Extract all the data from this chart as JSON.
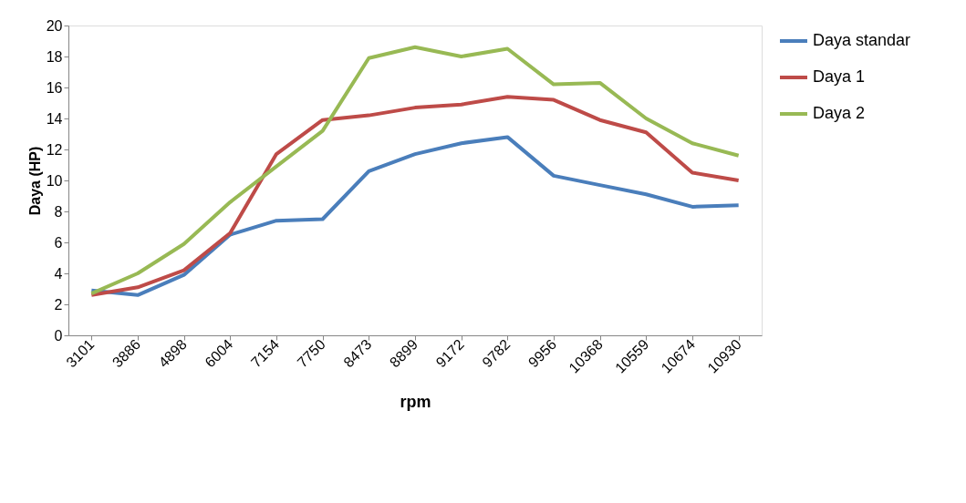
{
  "chart_data": {
    "type": "line",
    "xlabel": "rpm",
    "ylabel": "Daya (HP)",
    "categories": [
      "3101",
      "3886",
      "4898",
      "6004",
      "7154",
      "7750",
      "8473",
      "8899",
      "9172",
      "9782",
      "9956",
      "10368",
      "10559",
      "10674",
      "10930"
    ],
    "ylim": [
      0,
      20
    ],
    "yticks": [
      0,
      2,
      4,
      6,
      8,
      10,
      12,
      14,
      16,
      18,
      20
    ],
    "grid": false,
    "legend": "right",
    "marker": "none",
    "line_style": "solid",
    "series": [
      {
        "name": "Daya standar",
        "color": "#4a7ebb",
        "values": [
          2.9,
          2.6,
          3.9,
          6.5,
          7.4,
          7.5,
          10.6,
          11.7,
          12.4,
          12.8,
          10.3,
          9.7,
          9.1,
          8.3,
          8.4
        ]
      },
      {
        "name": "Daya 1",
        "color": "#be4b48",
        "values": [
          2.6,
          3.1,
          4.2,
          6.6,
          11.7,
          13.9,
          14.2,
          14.7,
          14.9,
          15.4,
          15.2,
          13.9,
          13.1,
          10.5,
          10.0
        ]
      },
      {
        "name": "Daya 2",
        "color": "#98b954",
        "values": [
          2.7,
          4.0,
          5.9,
          8.6,
          10.9,
          13.2,
          17.9,
          18.6,
          18.0,
          18.5,
          16.2,
          16.3,
          14.0,
          12.4,
          11.6
        ]
      }
    ]
  }
}
